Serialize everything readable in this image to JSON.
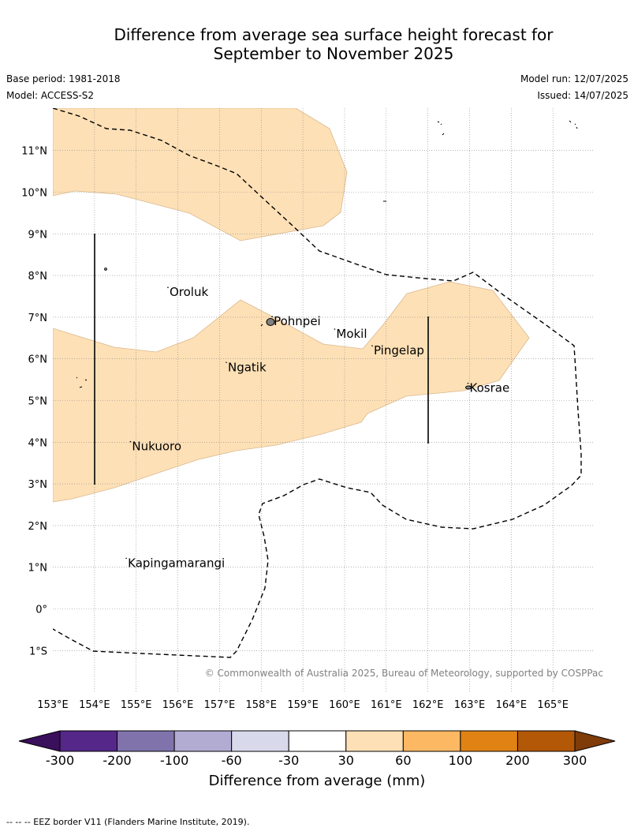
{
  "title_line1": "Difference from average sea surface height forecast for",
  "title_line2": "September to November 2025",
  "base_period": "Base period: 1981-2018",
  "model": "Model: ACCESS-S2",
  "model_run": "Model run: 12/07/2025",
  "issued": "Issued: 14/07/2025",
  "copyright": "© Commonwealth of Australia 2025, Bureau of Meteorology, supported by COSPPac",
  "footnote": "--  --  -- EEZ border V11 (Flanders Marine Institute, 2019).",
  "longitude_labels": [
    "153°E",
    "154°E",
    "155°E",
    "156°E",
    "157°E",
    "158°E",
    "159°E",
    "160°E",
    "161°E",
    "162°E",
    "163°E",
    "164°E",
    "165°E"
  ],
  "latitude_labels": [
    "11°N",
    "10°N",
    "9°N",
    "8°N",
    "7°N",
    "6°N",
    "5°N",
    "4°N",
    "3°N",
    "2°N",
    "1°N",
    "0°",
    "1°S"
  ],
  "places": [
    {
      "name": "Oroluk",
      "lon": 155.8,
      "lat": 7.6
    },
    {
      "name": "Pohnpei",
      "lon": 158.3,
      "lat": 6.9
    },
    {
      "name": "Mokil",
      "lon": 159.8,
      "lat": 6.6
    },
    {
      "name": "Pingelap",
      "lon": 160.7,
      "lat": 6.2
    },
    {
      "name": "Ngatik",
      "lon": 157.2,
      "lat": 5.8
    },
    {
      "name": "Kosrae",
      "lon": 163.0,
      "lat": 5.3
    },
    {
      "name": "Nukuoro",
      "lon": 154.9,
      "lat": 3.9
    },
    {
      "name": "Kapingamarangi",
      "lon": 154.8,
      "lat": 1.1
    }
  ],
  "colorbar": {
    "title": "Difference from average (mm)",
    "tick_labels": [
      "-300",
      "-200",
      "-100",
      "-60",
      "-30",
      "30",
      "60",
      "100",
      "200",
      "300"
    ],
    "colors": [
      "#3a0f5c",
      "#542788",
      "#8073ac",
      "#b2abd2",
      "#d8daeb",
      "#ffffff",
      "#fee0b6",
      "#fdb863",
      "#e08214",
      "#b35806",
      "#7f3b08"
    ]
  },
  "colors": {
    "anomaly_fill": "#fee0b6",
    "anomaly_edge": "#d9b98f",
    "eez": "#000000",
    "grid": "#888888",
    "copyright": "#808080"
  },
  "map_extent": {
    "lon": [
      153,
      166
    ],
    "lat": [
      -2,
      12
    ]
  }
}
